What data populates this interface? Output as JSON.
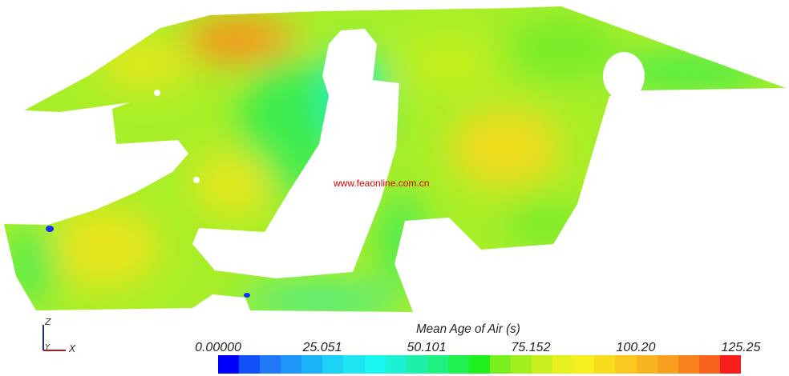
{
  "watermark": "www.feaonline.com.cn",
  "colorbar": {
    "title": "Mean Age of Air (s)",
    "ticks": [
      "0.00000",
      "25.051",
      "50.101",
      "75.152",
      "100.20",
      "125.25"
    ],
    "range": [
      0,
      125.25
    ],
    "colors": [
      "#0000ff",
      "#1450f8",
      "#1e78f8",
      "#1e96f8",
      "#19b4f8",
      "#19d2f5",
      "#1ee6f0",
      "#19f8f0",
      "#1ef0d2",
      "#1ef0aa",
      "#1ef082",
      "#1ef050",
      "#1ef01e",
      "#78f01e",
      "#a0f01e",
      "#c8f01e",
      "#e6f01e",
      "#f8f01e",
      "#f8dc1e",
      "#f8c81e",
      "#f8b41e",
      "#f8a01e",
      "#f8821e",
      "#f8641e",
      "#f81e1e"
    ]
  },
  "axes_triad": {
    "z": "Z",
    "y": "Y",
    "x": "X"
  }
}
